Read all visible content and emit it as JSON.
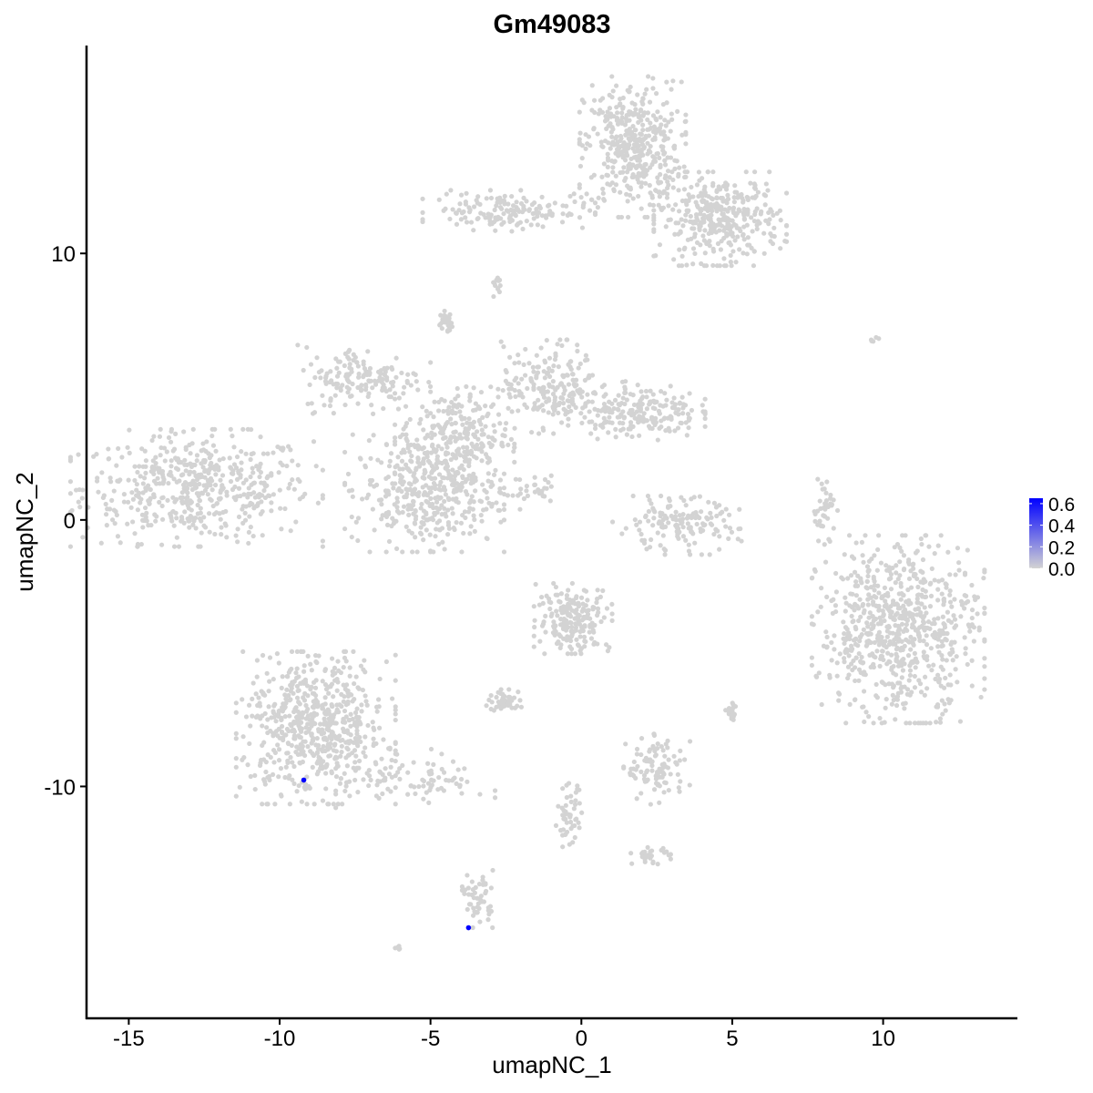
{
  "chart_data": {
    "type": "scatter",
    "title": "Gm49083",
    "xlabel": "umapNC_1",
    "ylabel": "umapNC_2",
    "xlim": [
      -16.4,
      14.45
    ],
    "ylim": [
      -18.7,
      17.8
    ],
    "xticks": [
      -15,
      -10,
      -5,
      0,
      5,
      10
    ],
    "xtick_labels": [
      "-15",
      "-10",
      "-5",
      "0",
      "5",
      "10"
    ],
    "yticks": [
      -10,
      0,
      10
    ],
    "ytick_labels": [
      "-10",
      "0",
      "10"
    ],
    "grid": false,
    "legend": {
      "placement": "right",
      "type": "colorbar",
      "range": [
        0,
        0.65
      ],
      "ticks": [
        0.0,
        0.2,
        0.4,
        0.6
      ],
      "tick_labels": [
        "0.0",
        "0.2",
        "0.4",
        "0.6"
      ],
      "low_color": "#d3d3d3",
      "high_color": "#0000ff"
    },
    "point_color_unexpressed": "#d3d3d3",
    "clusters": [
      {
        "center": [
          -12.75,
          1.2
        ],
        "spread": [
          1.9,
          1.0
        ],
        "n": 520
      },
      {
        "center": [
          1.7,
          14.0
        ],
        "spread": [
          0.8,
          1.2
        ],
        "n": 420
      },
      {
        "center": [
          4.6,
          11.3
        ],
        "spread": [
          1.0,
          0.8
        ],
        "n": 360
      },
      {
        "center": [
          -2.4,
          11.6
        ],
        "spread": [
          1.3,
          0.35
        ],
        "n": 160
      },
      {
        "center": [
          -4.2,
          3.1
        ],
        "spread": [
          0.9,
          0.9
        ],
        "n": 250
      },
      {
        "center": [
          -7.2,
          5.3
        ],
        "spread": [
          1.0,
          0.6
        ],
        "n": 160
      },
      {
        "center": [
          -5.2,
          1.0
        ],
        "spread": [
          1.2,
          1.0
        ],
        "n": 380
      },
      {
        "center": [
          -1.0,
          5.0
        ],
        "spread": [
          0.8,
          0.8
        ],
        "n": 200
      },
      {
        "center": [
          1.9,
          4.1
        ],
        "spread": [
          1.0,
          0.5
        ],
        "n": 200
      },
      {
        "center": [
          -8.8,
          -7.8
        ],
        "spread": [
          1.2,
          1.3
        ],
        "n": 620
      },
      {
        "center": [
          -5.5,
          -9.7
        ],
        "spread": [
          1.2,
          0.5
        ],
        "n": 90
      },
      {
        "center": [
          10.5,
          -4.1
        ],
        "spread": [
          1.3,
          1.6
        ],
        "n": 720
      },
      {
        "center": [
          3.2,
          -0.2
        ],
        "spread": [
          1.0,
          0.5
        ],
        "n": 150
      },
      {
        "center": [
          -0.25,
          -3.7
        ],
        "spread": [
          0.6,
          0.6
        ],
        "n": 200
      },
      {
        "center": [
          -2.5,
          -6.8
        ],
        "spread": [
          0.3,
          0.2
        ],
        "n": 50
      },
      {
        "center": [
          2.5,
          -9.35
        ],
        "spread": [
          0.5,
          0.6
        ],
        "n": 100
      },
      {
        "center": [
          -3.4,
          -14.2
        ],
        "spread": [
          0.25,
          0.5
        ],
        "n": 50
      },
      {
        "center": [
          8.05,
          0.4
        ],
        "spread": [
          0.2,
          0.6
        ],
        "n": 40
      },
      {
        "center": [
          -0.4,
          -11.2
        ],
        "spread": [
          0.2,
          0.6
        ],
        "n": 50
      },
      {
        "center": [
          2.3,
          -12.6
        ],
        "spread": [
          0.3,
          0.15
        ],
        "n": 30
      },
      {
        "center": [
          -4.5,
          7.4
        ],
        "spread": [
          0.12,
          0.2
        ],
        "n": 30
      },
      {
        "center": [
          5.0,
          -7.2
        ],
        "spread": [
          0.1,
          0.15
        ],
        "n": 20
      },
      {
        "center": [
          -6.06,
          -16.1
        ],
        "spread": [
          0.05,
          0.05
        ],
        "n": 5
      },
      {
        "center": [
          -1.6,
          1.0
        ],
        "spread": [
          0.5,
          0.3
        ],
        "n": 30
      },
      {
        "center": [
          9.7,
          6.8
        ],
        "spread": [
          0.1,
          0.1
        ],
        "n": 5
      },
      {
        "center": [
          -2.8,
          8.8
        ],
        "spread": [
          0.1,
          0.3
        ],
        "n": 12
      }
    ],
    "expressed_points": [
      {
        "x": -9.2,
        "y": -9.76,
        "value": 0.65
      },
      {
        "x": -3.74,
        "y": -15.3,
        "value": 0.65
      }
    ]
  }
}
